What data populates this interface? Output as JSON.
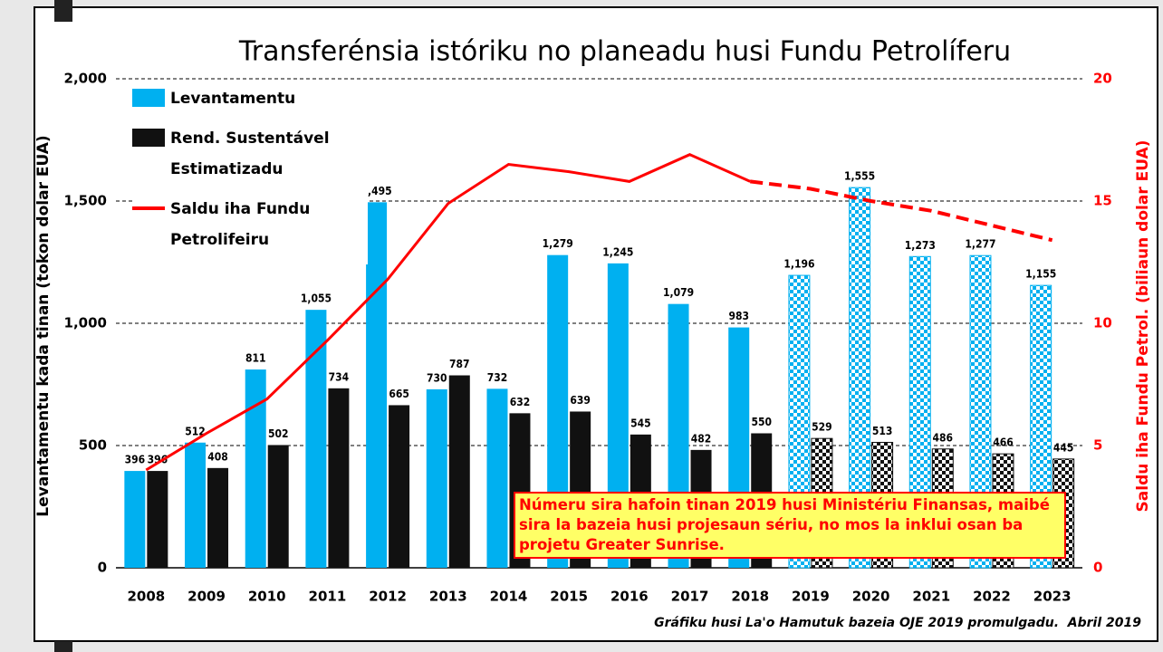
{
  "chart_data": {
    "type": "bar_line",
    "title": "Transferénsia istóriku no planeadu husi Fundu Petrolíferu",
    "y_label": "Levantamentu kada tinan (tokon dolar EUA)",
    "y2_label": "Saldu iha Fundu Petrol. (biliaun dolar EUA)",
    "annotation": "Númeru sira hafoin tinan 2019 husi Ministériu Finansas, maibé sira la bazeia husi projesaun sériu, no mos la inklui osan ba projetu Greater Sunrise.",
    "source": "Gráfiku husi La'o Hamutuk bazeia OJE 2019 promulgadu.  Abril 2019",
    "categories": [
      "2008",
      "2009",
      "2010",
      "2011",
      "2012",
      "2013",
      "2014",
      "2015",
      "2016",
      "2017",
      "2018",
      "2019",
      "2020",
      "2021",
      "2022",
      "2023"
    ],
    "projected_from": "2019",
    "series": [
      {
        "name": "Levantamentu",
        "type": "bar",
        "color": "#00b0f0",
        "values": [
          396,
          512,
          811,
          1055,
          1495,
          730,
          732,
          1279,
          1245,
          1079,
          983,
          1196,
          1555,
          1273,
          1277,
          1155
        ],
        "value_labels": [
          "396",
          "512",
          "811",
          "1,055",
          "1,495",
          "730",
          "732",
          "1,279",
          "1,245",
          "1,079",
          "983",
          "1,196",
          "1,555",
          "1,273",
          "1,277",
          "1,155"
        ]
      },
      {
        "name": "Rend. Sustentável Estimatizadu",
        "type": "bar",
        "color": "#111111",
        "values": [
          396,
          408,
          502,
          734,
          665,
          787,
          632,
          639,
          545,
          482,
          550,
          529,
          513,
          486,
          466,
          445
        ]
      },
      {
        "name": "Saldu iha Fundu Petrolifeiru",
        "type": "line",
        "axis": "y2",
        "color": "#ff0000",
        "values": [
          4.0,
          5.5,
          6.9,
          9.3,
          11.8,
          14.9,
          16.5,
          16.2,
          15.8,
          16.9,
          15.8,
          15.5,
          15.0,
          14.6,
          14.0,
          13.4
        ]
      }
    ],
    "ylim": [
      0,
      2000
    ],
    "yticks": [
      0,
      500,
      {
        "value": 1000,
        "label": "1,000"
      },
      {
        "value": 1500,
        "label": "1,500"
      },
      {
        "value": 2000,
        "label": "2,000"
      }
    ],
    "y2lim": [
      0,
      20
    ],
    "y2ticks": [
      0,
      5,
      10,
      15,
      20
    ],
    "y2_color": "#ff0000",
    "grid": true
  }
}
